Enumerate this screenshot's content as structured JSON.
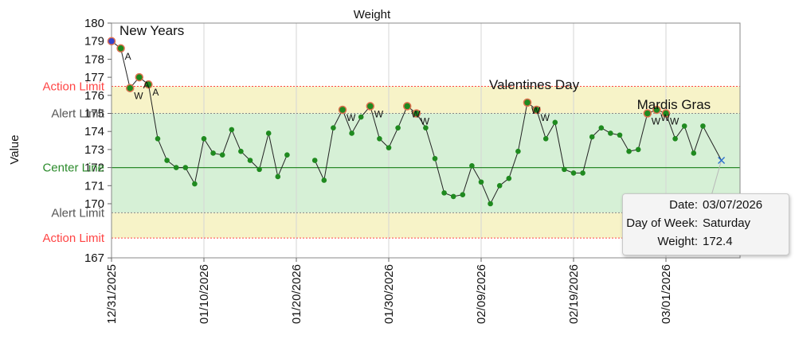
{
  "chart_data": {
    "type": "line",
    "title": "Weight",
    "ylabel": "Value",
    "xlabel": "",
    "ylim": [
      167,
      180
    ],
    "y_ticks": [
      167,
      170,
      171,
      172,
      173,
      174,
      175,
      176,
      177,
      178,
      179,
      180
    ],
    "x_start": "12/31/2025",
    "x_ticks": [
      "12/31/2025",
      "01/10/2026",
      "01/20/2026",
      "01/30/2026",
      "02/09/2026",
      "02/19/2026",
      "03/01/2026"
    ],
    "grid": true,
    "limits": {
      "action_upper": 176.5,
      "alert_upper": 175.0,
      "center": 172.0,
      "alert_lower": 169.5,
      "action_lower": 168.1,
      "labels": {
        "action": "Action Limit",
        "alert": "Alert Limit",
        "center": "Center Line"
      }
    },
    "colors": {
      "line": "#222222",
      "point": "#1f8a1f",
      "flag_ring": "#e07050",
      "first_point": "#3344cc",
      "action": "#ff4444",
      "alert_band": "#f7f3c8",
      "center_band": "#d6f0d6",
      "center_line": "#2a8a2a",
      "cursor": "#2b6fcf"
    },
    "points": [
      {
        "x": "12/31/2025",
        "y": 179.0,
        "flag": ""
      },
      {
        "x": "01/01/2026",
        "y": 178.6,
        "flag": "A"
      },
      {
        "x": "01/02/2026",
        "y": 176.4,
        "flag": "W"
      },
      {
        "x": "01/03/2026",
        "y": 177.0,
        "flag": "A"
      },
      {
        "x": "01/04/2026",
        "y": 176.6,
        "flag": "A"
      },
      {
        "x": "01/05/2026",
        "y": 173.6,
        "flag": ""
      },
      {
        "x": "01/06/2026",
        "y": 172.4,
        "flag": ""
      },
      {
        "x": "01/07/2026",
        "y": 172.0,
        "flag": ""
      },
      {
        "x": "01/08/2026",
        "y": 172.0,
        "flag": ""
      },
      {
        "x": "01/09/2026",
        "y": 171.1,
        "flag": ""
      },
      {
        "x": "01/10/2026",
        "y": 173.6,
        "flag": ""
      },
      {
        "x": "01/11/2026",
        "y": 172.8,
        "flag": ""
      },
      {
        "x": "01/12/2026",
        "y": 172.7,
        "flag": ""
      },
      {
        "x": "01/13/2026",
        "y": 174.1,
        "flag": ""
      },
      {
        "x": "01/14/2026",
        "y": 172.9,
        "flag": ""
      },
      {
        "x": "01/15/2026",
        "y": 172.4,
        "flag": ""
      },
      {
        "x": "01/16/2026",
        "y": 171.9,
        "flag": ""
      },
      {
        "x": "01/17/2026",
        "y": 173.9,
        "flag": ""
      },
      {
        "x": "01/18/2026",
        "y": 171.5,
        "flag": ""
      },
      {
        "x": "01/19/2026",
        "y": 172.7,
        "flag": ""
      },
      {
        "x": "01/22/2026",
        "y": 172.4,
        "flag": ""
      },
      {
        "x": "01/23/2026",
        "y": 171.3,
        "flag": ""
      },
      {
        "x": "01/24/2026",
        "y": 174.2,
        "flag": ""
      },
      {
        "x": "01/25/2026",
        "y": 175.2,
        "flag": "W"
      },
      {
        "x": "01/26/2026",
        "y": 173.9,
        "flag": ""
      },
      {
        "x": "01/27/2026",
        "y": 174.8,
        "flag": ""
      },
      {
        "x": "01/28/2026",
        "y": 175.4,
        "flag": "W"
      },
      {
        "x": "01/29/2026",
        "y": 173.6,
        "flag": ""
      },
      {
        "x": "01/30/2026",
        "y": 173.1,
        "flag": ""
      },
      {
        "x": "01/31/2026",
        "y": 174.2,
        "flag": ""
      },
      {
        "x": "02/01/2026",
        "y": 175.4,
        "flag": "W"
      },
      {
        "x": "02/02/2026",
        "y": 175.0,
        "flag": "W"
      },
      {
        "x": "02/03/2026",
        "y": 174.2,
        "flag": ""
      },
      {
        "x": "02/04/2026",
        "y": 172.5,
        "flag": ""
      },
      {
        "x": "02/05/2026",
        "y": 170.6,
        "flag": ""
      },
      {
        "x": "02/06/2026",
        "y": 170.4,
        "flag": ""
      },
      {
        "x": "02/07/2026",
        "y": 170.5,
        "flag": ""
      },
      {
        "x": "02/08/2026",
        "y": 172.1,
        "flag": ""
      },
      {
        "x": "02/09/2026",
        "y": 171.2,
        "flag": ""
      },
      {
        "x": "02/10/2026",
        "y": 170.0,
        "flag": ""
      },
      {
        "x": "02/11/2026",
        "y": 171.0,
        "flag": ""
      },
      {
        "x": "02/12/2026",
        "y": 171.4,
        "flag": ""
      },
      {
        "x": "02/13/2026",
        "y": 172.9,
        "flag": ""
      },
      {
        "x": "02/14/2026",
        "y": 175.6,
        "flag": "W"
      },
      {
        "x": "02/15/2026",
        "y": 175.2,
        "flag": "W"
      },
      {
        "x": "02/16/2026",
        "y": 173.6,
        "flag": ""
      },
      {
        "x": "02/17/2026",
        "y": 174.5,
        "flag": ""
      },
      {
        "x": "02/18/2026",
        "y": 171.9,
        "flag": ""
      },
      {
        "x": "02/19/2026",
        "y": 171.7,
        "flag": ""
      },
      {
        "x": "02/20/2026",
        "y": 171.7,
        "flag": ""
      },
      {
        "x": "02/21/2026",
        "y": 173.7,
        "flag": ""
      },
      {
        "x": "02/22/2026",
        "y": 174.2,
        "flag": ""
      },
      {
        "x": "02/23/2026",
        "y": 173.9,
        "flag": ""
      },
      {
        "x": "02/24/2026",
        "y": 173.8,
        "flag": ""
      },
      {
        "x": "02/25/2026",
        "y": 172.9,
        "flag": ""
      },
      {
        "x": "02/26/2026",
        "y": 173.0,
        "flag": ""
      },
      {
        "x": "02/27/2026",
        "y": 175.0,
        "flag": "W"
      },
      {
        "x": "02/28/2026",
        "y": 175.2,
        "flag": "W"
      },
      {
        "x": "03/01/2026",
        "y": 175.0,
        "flag": "W"
      },
      {
        "x": "03/02/2026",
        "y": 173.6,
        "flag": ""
      },
      {
        "x": "03/03/2026",
        "y": 174.3,
        "flag": ""
      },
      {
        "x": "03/04/2026",
        "y": 172.8,
        "flag": ""
      },
      {
        "x": "03/05/2026",
        "y": 174.3,
        "flag": ""
      },
      {
        "x": "03/07/2026",
        "y": 172.4,
        "flag": ""
      }
    ],
    "series_breaks_after": [
      "01/19/2026"
    ],
    "annotations": [
      {
        "text": "New Years",
        "x": "12/31/2025",
        "y": 179.6
      },
      {
        "text": "Valentines Day",
        "x": "02/09/2026",
        "y": 176.6
      },
      {
        "text": "Mardis Gras",
        "x": "02/25/2026",
        "y": 175.5
      }
    ],
    "tooltip": {
      "rows": [
        {
          "key": "Date:",
          "value": "03/07/2026"
        },
        {
          "key": "Day of Week:",
          "value": "Saturday"
        },
        {
          "key": "Weight:",
          "value": "172.4"
        }
      ]
    }
  }
}
